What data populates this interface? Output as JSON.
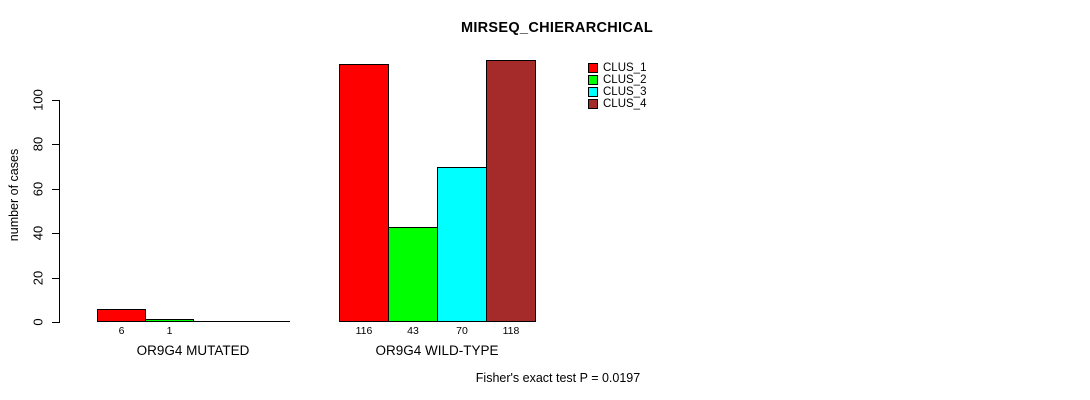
{
  "chart_data": {
    "type": "bar",
    "title": "MIRSEQ_CHIERARCHICAL",
    "xlabel": "",
    "ylabel": "number of cases",
    "yticks": [
      0,
      20,
      40,
      60,
      80,
      100
    ],
    "ylim": [
      0,
      118
    ],
    "grid": false,
    "legend_position": "top-right",
    "categories": [
      "OR9G4 MUTATED",
      "OR9G4 WILD-TYPE"
    ],
    "series": [
      {
        "name": "CLUS_1",
        "color": "#FF0000",
        "values": [
          6,
          116
        ]
      },
      {
        "name": "CLUS_2",
        "color": "#00FF00",
        "values": [
          1,
          43
        ]
      },
      {
        "name": "CLUS_3",
        "color": "#00FFFF",
        "values": [
          0,
          70
        ]
      },
      {
        "name": "CLUS_4",
        "color": "#A52A2A",
        "values": [
          0,
          118
        ]
      }
    ],
    "bar_value_labels": [
      [
        "6",
        "1",
        "",
        ""
      ],
      [
        "116",
        "43",
        "70",
        "118"
      ]
    ],
    "annotation": "Fisher's exact test P = 0.0197"
  }
}
